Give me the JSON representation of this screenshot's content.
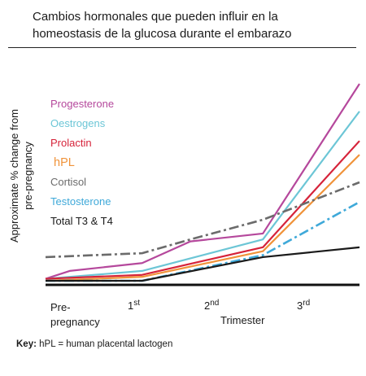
{
  "title_lines": [
    "Cambios hormonales que pueden influir en la",
    "homeostasis de la glucosa durante el embarazo"
  ],
  "key": {
    "label": "Key:",
    "text": "hPL = human placental lactogen"
  },
  "chart_data": {
    "type": "line",
    "title": "Cambios hormonales que pueden influir en la homeostasis de la glucosa durante el embarazo",
    "ylabel": "Approximate % change from pre-pregnancy",
    "xlabel": "Trimester",
    "x_tick_labels": [
      {
        "text": "Pre-",
        "text2": "pregnancy",
        "sup": ""
      },
      {
        "text": "1",
        "sup": "st"
      },
      {
        "text": "2",
        "sup": "nd"
      },
      {
        "text": "3",
        "sup": "rd"
      }
    ],
    "x_range": [
      0,
      3.25
    ],
    "y_range": [
      0,
      100
    ],
    "y_ticks_shown": false,
    "grid": false,
    "legend_position": "top-left",
    "series": [
      {
        "name": "Progesterone",
        "color": "#b5489c",
        "dash": "solid",
        "x": [
          0,
          0.25,
          1,
          1.5,
          2.25,
          3.25
        ],
        "y": [
          1,
          5,
          9,
          20,
          24,
          100
        ]
      },
      {
        "name": "Oestrogens",
        "color": "#6cc6d6",
        "dash": "solid",
        "x": [
          0,
          1,
          2.25,
          3.25
        ],
        "y": [
          1,
          5,
          21,
          86
        ]
      },
      {
        "name": "Prolactin",
        "color": "#d6233a",
        "dash": "solid",
        "x": [
          0,
          1,
          2.25,
          3.25
        ],
        "y": [
          1,
          3,
          17,
          71
        ]
      },
      {
        "name": "hPL",
        "color": "#f0933a",
        "dash": "solid",
        "x": [
          0,
          1,
          2.25,
          3.25
        ],
        "y": [
          0,
          2,
          15,
          64
        ]
      },
      {
        "name": "Cortisol",
        "color": "#6b6b6b",
        "dash": "dashdot",
        "x": [
          0,
          1,
          1.5,
          2.25,
          3.25
        ],
        "y": [
          12,
          14,
          21,
          31,
          50
        ]
      },
      {
        "name": "Testosterone",
        "color": "#3fa9d9",
        "dash": "dashdot",
        "x": [
          0,
          1,
          2.25,
          3.25
        ],
        "y": [
          0,
          0,
          13,
          40
        ]
      },
      {
        "name": "Total T3 & T4",
        "color": "#1a1a1a",
        "dash": "solid",
        "x": [
          0,
          1,
          2.25,
          3.25
        ],
        "y": [
          0,
          0,
          12,
          17
        ]
      }
    ]
  }
}
